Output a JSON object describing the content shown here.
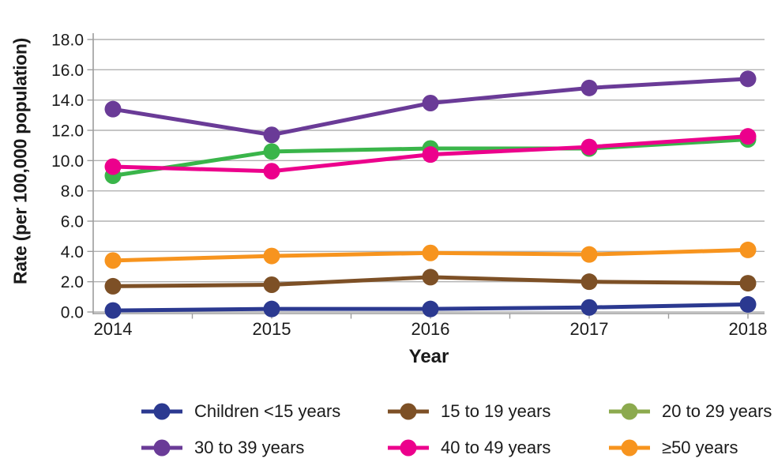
{
  "page": {
    "background": "#ffffff"
  },
  "chart_data": {
    "type": "line",
    "title": "",
    "xlabel": "Year",
    "ylabel": "Rate (per 100,000 population)",
    "x": [
      2014,
      2015,
      2016,
      2017,
      2018
    ],
    "ylim": [
      0,
      18
    ],
    "y_tick_step": 2,
    "grid": "horizontal",
    "legend_position": "bottom",
    "series": [
      {
        "name": "Children <15 years",
        "color": "#2b3990",
        "legend_color": "#2b3990",
        "values": [
          0.1,
          0.2,
          0.2,
          0.3,
          0.5
        ]
      },
      {
        "name": "15 to 19 years",
        "color": "#7d5026",
        "legend_color": "#7d5026",
        "values": [
          1.7,
          1.8,
          2.3,
          2.0,
          1.9
        ]
      },
      {
        "name": "20 to 29 years",
        "color": "#3ab54a",
        "legend_color": "#8caa4e",
        "values": [
          9.0,
          10.6,
          10.8,
          10.8,
          11.4
        ]
      },
      {
        "name": "30 to 39 years",
        "color": "#6a3b97",
        "legend_color": "#6a3b97",
        "values": [
          13.4,
          11.7,
          13.8,
          14.8,
          15.4
        ]
      },
      {
        "name": "40 to 49 years",
        "color": "#ec008c",
        "legend_color": "#ec008c",
        "values": [
          9.6,
          9.3,
          10.4,
          10.9,
          11.6
        ]
      },
      {
        "name": "≥50 years",
        "color": "#f7941e",
        "legend_color": "#f7941e",
        "values": [
          3.4,
          3.7,
          3.9,
          3.8,
          4.1
        ]
      }
    ],
    "colors": {
      "gridline": "#b2b2b2",
      "axis": "#9d9d9d",
      "text": "#1a1a1a"
    }
  }
}
